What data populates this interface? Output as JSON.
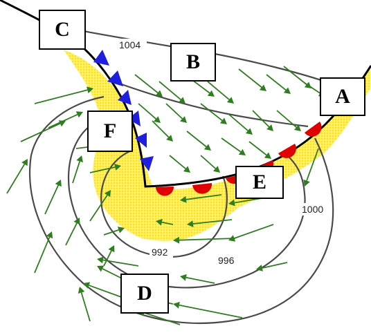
{
  "isobar_labels": {
    "p1004": "1004",
    "p1000": "1000",
    "p996": "996",
    "p992": "992"
  },
  "point_labels": {
    "A": "A",
    "B": "B",
    "C": "C",
    "D": "D",
    "E": "E",
    "F": "F"
  },
  "colors": {
    "cold_front": "#1f1fe0",
    "warm_front": "#e00000",
    "wind_arrow": "#2e7d1e",
    "precipitation": "#ffee55",
    "isobar": "#4a4a4a"
  }
}
